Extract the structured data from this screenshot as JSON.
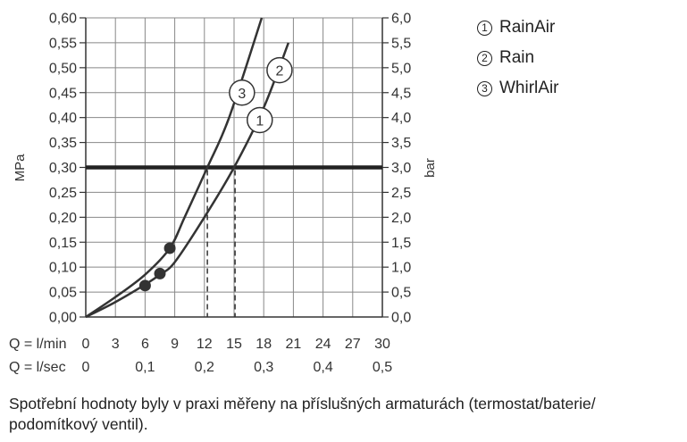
{
  "chart_data": {
    "type": "line",
    "x_rows": [
      {
        "label": "Q = l/min",
        "ticks": [
          "0",
          "3",
          "6",
          "9",
          "12",
          "15",
          "18",
          "21",
          "24",
          "27",
          "30"
        ],
        "values": [
          0,
          3,
          6,
          9,
          12,
          15,
          18,
          21,
          24,
          27,
          30
        ]
      },
      {
        "label": "Q = l/sec",
        "ticks": [
          "0",
          "0,1",
          "0,2",
          "0,3",
          "0,4",
          "0,5"
        ],
        "values": [
          0,
          6,
          12,
          18,
          24,
          30
        ]
      }
    ],
    "xlim": [
      0,
      30
    ],
    "ylim": [
      0,
      0.6
    ],
    "ylabel_left": "MPa",
    "ylabel_right": "bar",
    "y_left_ticks": [
      "0,00",
      "0,05",
      "0,10",
      "0,15",
      "0,20",
      "0,25",
      "0,30",
      "0,35",
      "0,40",
      "0,45",
      "0,50",
      "0,55",
      "0,60"
    ],
    "y_right_ticks": [
      "0,0",
      "0,5",
      "1,0",
      "1,5",
      "2,0",
      "2,5",
      "3,0",
      "3,5",
      "4,0",
      "4,5",
      "5,0",
      "5,5",
      "6,0"
    ],
    "grid": true,
    "reference_line": {
      "y": 0.3
    },
    "series": [
      {
        "name": "RainAir",
        "marker": "1",
        "x": [
          0,
          3,
          6,
          7.5,
          9,
          12,
          15,
          18,
          20.5
        ],
        "y": [
          0,
          0.03,
          0.065,
          0.085,
          0.11,
          0.2,
          0.3,
          0.42,
          0.55
        ],
        "label_at": {
          "x": 17.6,
          "y": 0.395
        },
        "dot": {
          "x": 6,
          "y": 0.063
        },
        "drop_line": {
          "x": 15.1,
          "y": 0.3
        }
      },
      {
        "name": "Rain",
        "marker": "2",
        "x": [
          0,
          3,
          6,
          7.5,
          9,
          12,
          15,
          18,
          20.5
        ],
        "y": [
          0,
          0.03,
          0.065,
          0.085,
          0.11,
          0.2,
          0.3,
          0.42,
          0.55
        ],
        "label_at": {
          "x": 19.6,
          "y": 0.495
        },
        "dot": {
          "x": 7.5,
          "y": 0.087
        },
        "drop_line": {
          "x": 15.1,
          "y": 0.3
        }
      },
      {
        "name": "WhirlAir",
        "marker": "3",
        "x": [
          0,
          3,
          6,
          8.5,
          10,
          12.3,
          14.5,
          17.8
        ],
        "y": [
          0,
          0.04,
          0.085,
          0.138,
          0.2,
          0.3,
          0.4,
          0.6
        ],
        "label_at": {
          "x": 15.8,
          "y": 0.45
        },
        "dot": {
          "x": 8.5,
          "y": 0.138
        },
        "drop_line": {
          "x": 12.3,
          "y": 0.3
        }
      }
    ]
  },
  "legend": [
    {
      "marker": "1",
      "label": "RainAir"
    },
    {
      "marker": "2",
      "label": "Rain"
    },
    {
      "marker": "3",
      "label": "WhirlAir"
    }
  ],
  "footnote": "Spotřební hodnoty byly v praxi měřeny na příslušných armaturách (termostat/baterie/ podomítkový ventil)."
}
